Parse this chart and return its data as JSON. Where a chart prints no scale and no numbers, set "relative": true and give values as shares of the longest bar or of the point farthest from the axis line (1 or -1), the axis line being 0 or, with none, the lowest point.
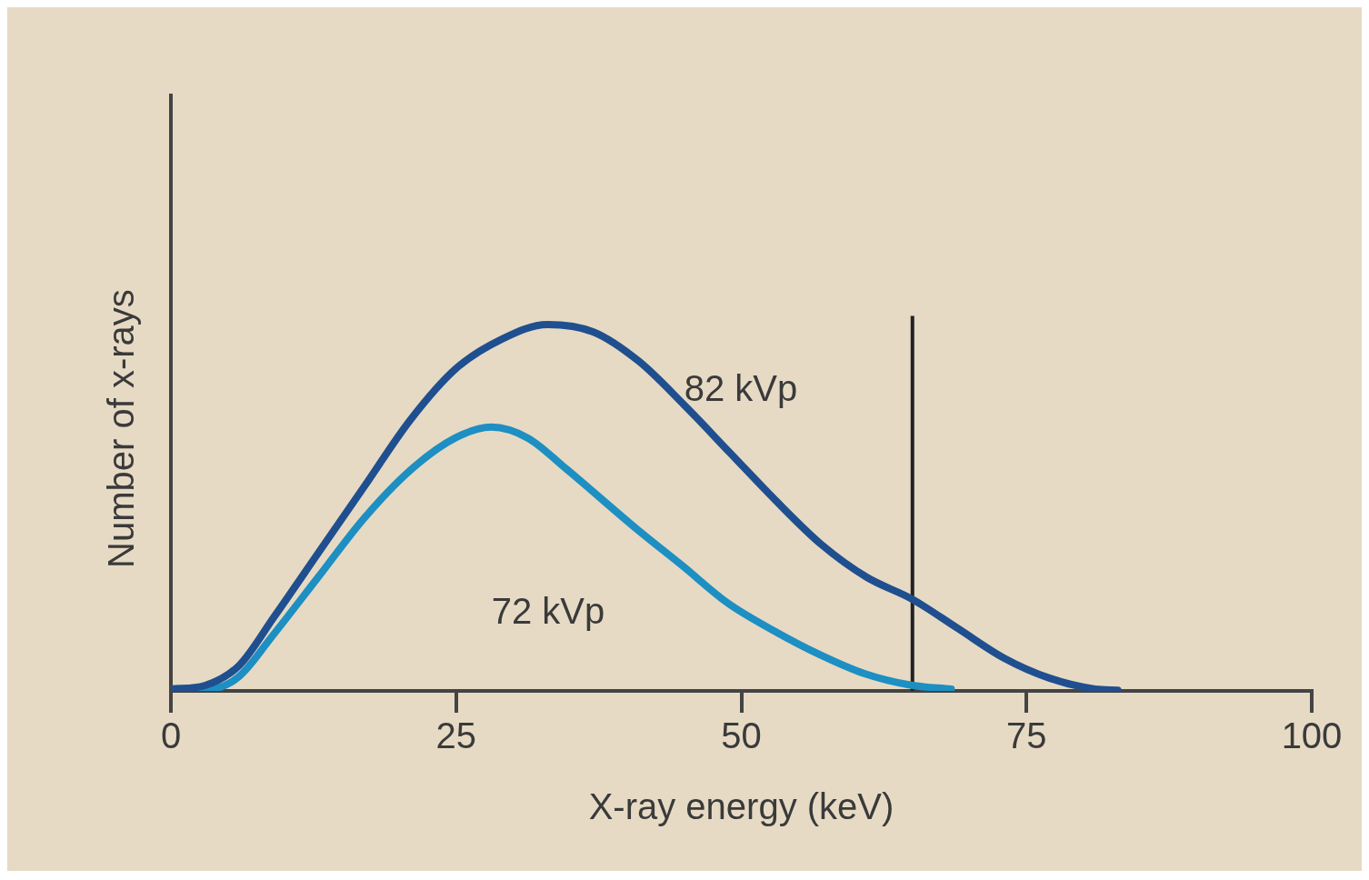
{
  "chart_data": {
    "type": "line",
    "xlabel": "X-ray energy (keV)",
    "ylabel": "Number of x-rays",
    "relative": true,
    "xlim": [
      0,
      100
    ],
    "xticks": [
      0,
      25,
      50,
      75,
      100
    ],
    "grid": false,
    "legend": false,
    "marker": "none",
    "line_style": "solid",
    "series": [
      {
        "name": "82 kVp",
        "color": "#1f4f8f",
        "x": [
          0,
          3,
          6,
          9,
          13,
          17,
          21,
          25,
          29,
          33,
          37,
          41,
          45,
          49,
          53,
          57,
          61,
          65,
          69,
          73,
          77,
          81,
          83
        ],
        "values": [
          0.005,
          0.015,
          0.07,
          0.2,
          0.38,
          0.56,
          0.74,
          0.88,
          0.96,
          1.0,
          0.98,
          0.9,
          0.78,
          0.65,
          0.52,
          0.4,
          0.31,
          0.25,
          0.17,
          0.09,
          0.035,
          0.005,
          0.002
        ]
      },
      {
        "name": "72 kVp",
        "color": "#1d8fc2",
        "x": [
          0,
          3.5,
          6,
          8.9,
          12.9,
          16.9,
          20.9,
          24.9,
          28.1,
          31.3,
          34.5,
          40.9,
          44.9,
          48.8,
          52.8,
          56.8,
          60.8,
          64.8,
          68.4
        ],
        "values": [
          0.003,
          0.005,
          0.04,
          0.15,
          0.31,
          0.47,
          0.6,
          0.69,
          0.72,
          0.69,
          0.61,
          0.44,
          0.34,
          0.24,
          0.165,
          0.1,
          0.047,
          0.016,
          0.005
        ]
      }
    ],
    "ref_lines": [
      {
        "axis": "x",
        "value": 65,
        "color": "#222222"
      }
    ]
  }
}
